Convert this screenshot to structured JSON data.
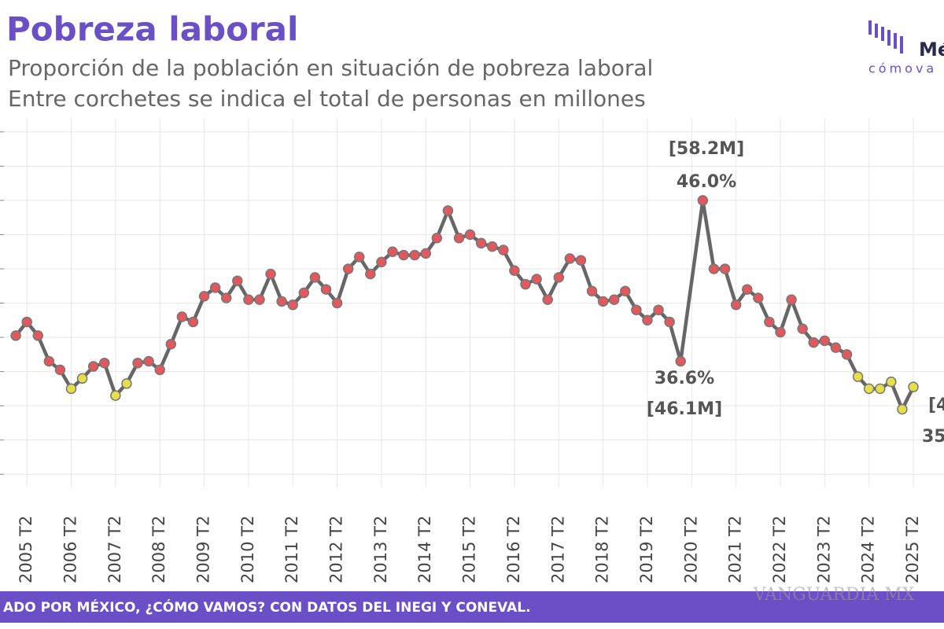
{
  "chart_data": {
    "type": "line",
    "title": "Pobreza laboral",
    "subtitle": "Proporción de la población en situación de pobreza laboral",
    "subtitle2": "Entre corchetes se indica el total de personas en millones",
    "logo": {
      "name": "Mé",
      "tagline": "cómova"
    },
    "x": [
      2005,
      2005.25,
      2005.5,
      2005.75,
      2006,
      2006.25,
      2006.5,
      2006.75,
      2007,
      2007.25,
      2007.5,
      2007.75,
      2008,
      2008.25,
      2008.5,
      2008.75,
      2009,
      2009.25,
      2009.5,
      2009.75,
      2010,
      2010.25,
      2010.5,
      2010.75,
      2011,
      2011.25,
      2011.5,
      2011.75,
      2012,
      2012.25,
      2012.5,
      2012.75,
      2013,
      2013.25,
      2013.5,
      2013.75,
      2014,
      2014.25,
      2014.5,
      2014.75,
      2015,
      2015.25,
      2015.5,
      2015.75,
      2016,
      2016.25,
      2016.5,
      2016.75,
      2017,
      2017.25,
      2017.5,
      2017.75,
      2018,
      2018.25,
      2018.5,
      2018.75,
      2019,
      2019.25,
      2019.5,
      2019.75,
      2020,
      2020.5,
      2020.75,
      2021,
      2021.25,
      2021.5,
      2021.75,
      2022,
      2022.25,
      2022.5,
      2022.75,
      2023,
      2023.25,
      2023.5,
      2023.75,
      2024,
      2024.25,
      2024.5,
      2024.75,
      2025,
      2025.25
    ],
    "values": [
      38.1,
      38.9,
      38.1,
      36.6,
      36.1,
      35.0,
      35.6,
      36.3,
      36.5,
      34.6,
      35.3,
      36.5,
      36.6,
      36.1,
      37.6,
      39.2,
      38.9,
      40.4,
      40.9,
      40.3,
      41.3,
      40.2,
      40.2,
      41.7,
      40.1,
      39.9,
      40.6,
      41.5,
      40.8,
      40.0,
      42.0,
      42.7,
      41.7,
      42.4,
      43.0,
      42.8,
      42.8,
      42.9,
      43.8,
      45.4,
      43.8,
      44.0,
      43.5,
      43.3,
      43.1,
      41.9,
      41.1,
      41.4,
      40.2,
      41.5,
      42.6,
      42.5,
      40.7,
      40.1,
      40.2,
      40.7,
      39.6,
      39.0,
      39.6,
      38.9,
      36.6,
      46.0,
      42.0,
      42.0,
      39.9,
      40.8,
      40.3,
      38.9,
      38.3,
      40.2,
      38.5,
      37.7,
      37.8,
      37.4,
      37.0,
      35.7,
      35.0,
      35.0,
      35.4,
      33.8,
      35.1
    ],
    "marker_colors": [
      "#e2585c",
      "#e2585c",
      "#e2585c",
      "#e2585c",
      "#e2585c",
      "#e6df4a",
      "#e6df4a",
      "#e2585c",
      "#e2585c",
      "#e6df4a",
      "#e6df4a",
      "#e2585c",
      "#e2585c",
      "#e2585c",
      "#e2585c",
      "#e2585c",
      "#e2585c",
      "#e2585c",
      "#e2585c",
      "#e2585c",
      "#e2585c",
      "#e2585c",
      "#e2585c",
      "#e2585c",
      "#e2585c",
      "#e2585c",
      "#e2585c",
      "#e2585c",
      "#e2585c",
      "#e2585c",
      "#e2585c",
      "#e2585c",
      "#e2585c",
      "#e2585c",
      "#e2585c",
      "#e2585c",
      "#e2585c",
      "#e2585c",
      "#e2585c",
      "#e2585c",
      "#e2585c",
      "#e2585c",
      "#e2585c",
      "#e2585c",
      "#e2585c",
      "#e2585c",
      "#e2585c",
      "#e2585c",
      "#e2585c",
      "#e2585c",
      "#e2585c",
      "#e2585c",
      "#e2585c",
      "#e2585c",
      "#e2585c",
      "#e2585c",
      "#e2585c",
      "#e2585c",
      "#e2585c",
      "#e2585c",
      "#e2585c",
      "#e2585c",
      "#e2585c",
      "#e2585c",
      "#e2585c",
      "#e2585c",
      "#e2585c",
      "#e2585c",
      "#e2585c",
      "#e2585c",
      "#e2585c",
      "#e2585c",
      "#e2585c",
      "#e2585c",
      "#e2585c",
      "#e6df4a",
      "#e6df4a",
      "#e6df4a",
      "#e6df4a",
      "#e6df4a",
      "#e6df4a"
    ],
    "line_color": "#666666",
    "xlim": [
      2004.75,
      2025.8
    ],
    "ylim": [
      29,
      51
    ],
    "xticks": [
      {
        "value": 2005.25,
        "label": "2005 T2"
      },
      {
        "value": 2006.25,
        "label": "2006 T2"
      },
      {
        "value": 2007.25,
        "label": "2007 T2"
      },
      {
        "value": 2008.25,
        "label": "2008 T2"
      },
      {
        "value": 2009.25,
        "label": "2009 T2"
      },
      {
        "value": 2010.25,
        "label": "2010 T2"
      },
      {
        "value": 2011.25,
        "label": "2011 T2"
      },
      {
        "value": 2012.25,
        "label": "2012 T2"
      },
      {
        "value": 2013.25,
        "label": "2013 T2"
      },
      {
        "value": 2014.25,
        "label": "2014 T2"
      },
      {
        "value": 2015.25,
        "label": "2015 T2"
      },
      {
        "value": 2016.25,
        "label": "2016 T2"
      },
      {
        "value": 2017.25,
        "label": "2017 T2"
      },
      {
        "value": 2018.25,
        "label": "2018 T2"
      },
      {
        "value": 2019.25,
        "label": "2019 T2"
      },
      {
        "value": 2020.25,
        "label": "2020 T2"
      },
      {
        "value": 2021.25,
        "label": "2021 T2"
      },
      {
        "value": 2022.25,
        "label": "2022 T2"
      },
      {
        "value": 2023.25,
        "label": "2023 T2"
      },
      {
        "value": 2024.25,
        "label": "2024 T2"
      },
      {
        "value": 2025.25,
        "label": "2025 T2"
      }
    ],
    "yticks": [
      30,
      32,
      34,
      36,
      38,
      40,
      42,
      44,
      46,
      48,
      50
    ],
    "grid": true,
    "annotations": [
      "[58.2M]",
      "46.0%",
      "36.6%",
      "[46.1M]",
      "[4",
      "35"
    ],
    "footer": "ADO POR MÉXICO, ¿CÓMO VAMOS? CON DATOS DEL INEGI Y CONEVAL.",
    "watermark": "VANGUARDIA MX"
  }
}
